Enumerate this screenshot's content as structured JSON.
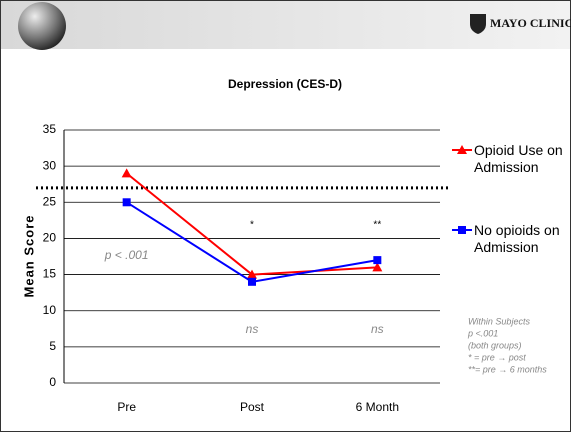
{
  "header": {
    "logo": "MAYO CLINIC"
  },
  "chart_data": {
    "type": "line",
    "title": "Depression (CES-D)",
    "y_label": "Mean Score",
    "categories": [
      "Pre",
      "Post",
      "6 Month"
    ],
    "series": [
      {
        "name": "Opioid Use on Admission",
        "color": "#ff0000",
        "marker": "triangle",
        "values": [
          29,
          15,
          16
        ]
      },
      {
        "name": "No opioids on Admission",
        "color": "#0000ff",
        "marker": "square",
        "values": [
          25,
          14,
          17
        ]
      }
    ],
    "ylim": [
      0,
      35
    ],
    "yticks": [
      0,
      5,
      10,
      15,
      20,
      25,
      30,
      35
    ],
    "grid": true,
    "threshold": 27,
    "legend": "right",
    "annotations": [
      "p < .001",
      "*",
      "**",
      "ns",
      "ns"
    ],
    "note": [
      "Within Subjects",
      "p <.001",
      "(both groups)",
      "* = pre → post",
      "**= pre → 6 months"
    ]
  }
}
